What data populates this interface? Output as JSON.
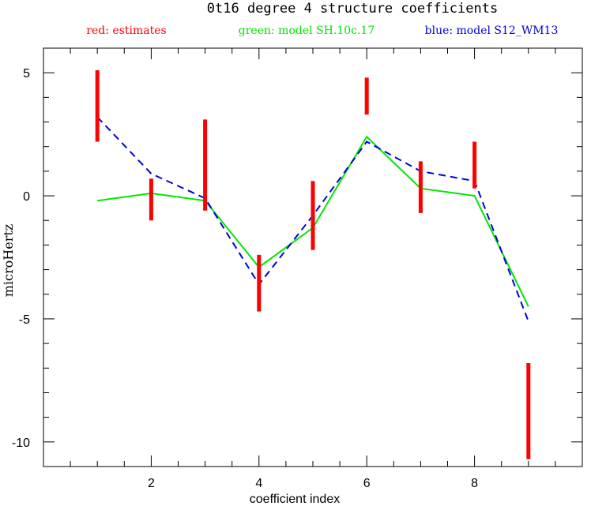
{
  "chart_data": {
    "type": "line",
    "title": "0t16 degree 4 structure coefficients",
    "legend": {
      "estimates": {
        "text": "red: estimates",
        "color": "#ff0000"
      },
      "model_a": {
        "text": "green: model SH.10c.17",
        "color": "#00e600"
      },
      "model_b": {
        "text": "blue: model S12_WM13",
        "color": "#0000dd"
      }
    },
    "xlabel": "coefficient index",
    "ylabel": "microHertz",
    "xlim": [
      0,
      10
    ],
    "ylim": [
      -11,
      6
    ],
    "x_ticks": [
      2,
      4,
      6,
      8
    ],
    "y_ticks": [
      5,
      0,
      -5,
      -10
    ],
    "x_tick_labels": [
      "2",
      "4",
      "6",
      "8"
    ],
    "y_tick_labels": [
      "5",
      "0",
      "-5",
      "-10"
    ],
    "x_minor_step": 0.5,
    "y_minor_step": 1,
    "estimates": [
      {
        "x": 1,
        "low": 2.2,
        "high": 5.1
      },
      {
        "x": 2,
        "low": -1.0,
        "high": 0.7
      },
      {
        "x": 3,
        "low": -0.6,
        "high": 3.1
      },
      {
        "x": 4,
        "low": -4.7,
        "high": -2.4
      },
      {
        "x": 5,
        "low": -2.2,
        "high": 0.6
      },
      {
        "x": 6,
        "low": 3.3,
        "high": 4.8
      },
      {
        "x": 7,
        "low": -0.7,
        "high": 1.4
      },
      {
        "x": 8,
        "low": 0.3,
        "high": 2.2
      },
      {
        "x": 9,
        "low": -10.7,
        "high": -6.8
      }
    ],
    "series": [
      {
        "key": "model_a",
        "color": "#00e600",
        "dash": false,
        "x": [
          1,
          2,
          3,
          4,
          5,
          6,
          7,
          8,
          9
        ],
        "values": [
          -0.2,
          0.1,
          -0.2,
          -2.9,
          -1.3,
          2.4,
          0.3,
          0.0,
          -4.5
        ]
      },
      {
        "key": "model_b",
        "color": "#0000dd",
        "dash": true,
        "x": [
          1,
          2,
          3,
          4,
          5,
          6,
          7,
          8,
          9
        ],
        "values": [
          3.2,
          0.9,
          -0.1,
          -3.6,
          -0.8,
          2.2,
          1.0,
          0.6,
          -5.1
        ]
      }
    ]
  }
}
